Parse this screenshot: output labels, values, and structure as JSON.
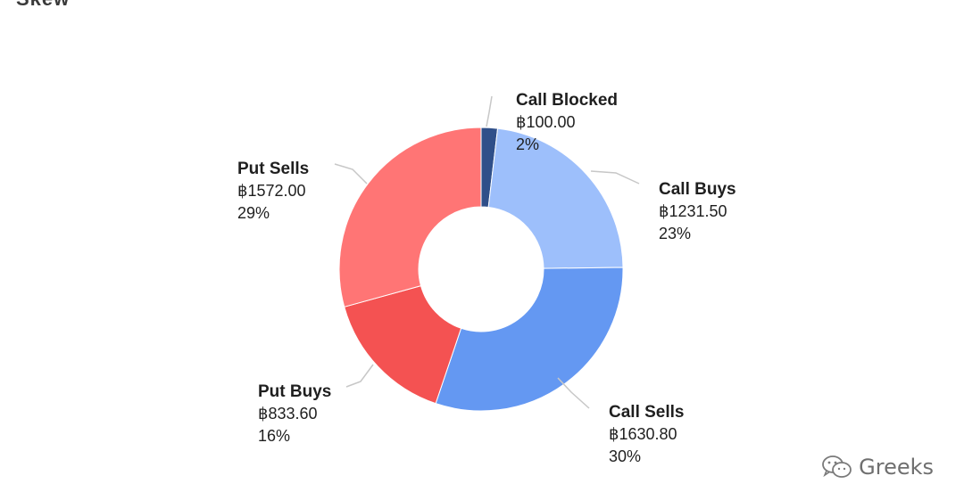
{
  "header": {
    "logo_text": "Skew",
    "logo_accent": "",
    "title": ""
  },
  "watermark": {
    "text": "Greeks",
    "icon": "wechat-icon"
  },
  "colors": {
    "call_blocked": "#2f4f89",
    "call_buys": "#9dbffb",
    "call_sells": "#6498f2",
    "put_buys": "#f45252",
    "put_sells": "#ff7575",
    "leader": "#c7c7c7"
  },
  "chart_data": {
    "type": "pie",
    "variant": "donut",
    "currency_symbol": "฿",
    "slices": [
      {
        "name": "Call Blocked",
        "value": 100.0,
        "value_label": "฿100.00",
        "percent_label": "2%",
        "color": "#2f4f89"
      },
      {
        "name": "Call Buys",
        "value": 1231.5,
        "value_label": "฿1231.50",
        "percent_label": "23%",
        "color": "#9dbffb"
      },
      {
        "name": "Call Sells",
        "value": 1630.8,
        "value_label": "฿1630.80",
        "percent_label": "30%",
        "color": "#6498f2"
      },
      {
        "name": "Put Buys",
        "value": 833.6,
        "value_label": "฿833.60",
        "percent_label": "16%",
        "color": "#f45252"
      },
      {
        "name": "Put Sells",
        "value": 1572.0,
        "value_label": "฿1572.00",
        "percent_label": "29%",
        "color": "#ff7575"
      }
    ],
    "start_angle_deg": 0,
    "direction": "clockwise",
    "legend": "none"
  }
}
